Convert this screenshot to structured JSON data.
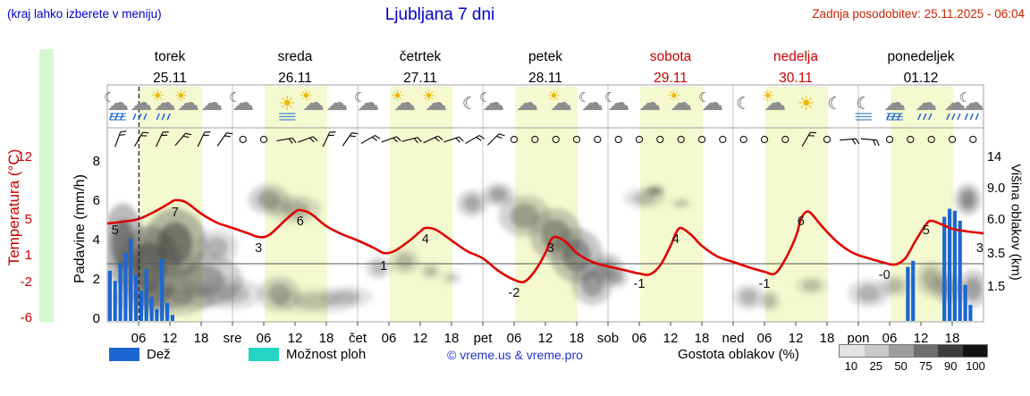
{
  "header": {
    "note": "(kraj lahko izberete v meniju)",
    "title": "Ljubljana 7 dni",
    "updated": "Zadnja posodobitev: 25.11.2025 - 06:04"
  },
  "axes": {
    "temp_label": "Temperatura (°C)",
    "temp_ticks": [
      "12",
      "5",
      "1",
      "-2",
      "-6"
    ],
    "precip_label": "Padavine (mm/h)",
    "precip_ticks": [
      "8",
      "6",
      "4",
      "2",
      "0"
    ],
    "cloud_label": "Višina oblakov (km)",
    "cloud_ticks": [
      "14",
      "9.0",
      "6.0",
      "3.5",
      "1.5"
    ]
  },
  "days": [
    {
      "name": "torek",
      "date": "25.11",
      "red": false
    },
    {
      "name": "sreda",
      "date": "26.11",
      "red": false
    },
    {
      "name": "četrtek",
      "date": "27.11",
      "red": false
    },
    {
      "name": "petek",
      "date": "28.11",
      "red": false
    },
    {
      "name": "sobota",
      "date": "29.11",
      "red": true
    },
    {
      "name": "nedelja",
      "date": "30.11",
      "red": true
    },
    {
      "name": "ponedeljek",
      "date": "01.12",
      "red": false
    }
  ],
  "xticks": [
    "06",
    "12",
    "18",
    "sre",
    "06",
    "12",
    "18",
    "čet",
    "06",
    "12",
    "18",
    "pet",
    "06",
    "12",
    "18",
    "sob",
    "06",
    "12",
    "18",
    "ned",
    "06",
    "12",
    "18",
    "pon",
    "06",
    "12",
    "18"
  ],
  "legend": {
    "rain": "Dež",
    "showers": "Možnost ploh",
    "credit": "© vreme.us & vreme.pro",
    "cloud_density": "Gostota oblakov (%)",
    "density_ticks": [
      "10",
      "25",
      "50",
      "75",
      "90",
      "100"
    ],
    "density_colors": [
      "#e4e4e4",
      "#c9c9c9",
      "#9d9d9d",
      "#6e6e6e",
      "#3d3d3d",
      "#121212"
    ],
    "rain_color": "#1c66d4",
    "showers_color": "#22d6c3"
  },
  "chart_data": {
    "type": "line",
    "title": "Ljubljana 7 dni",
    "x_unit": "hour",
    "x_range_hours": [
      0,
      168
    ],
    "now_hour": 6.07,
    "daylight_band_hours": [
      6.2,
      18.2
    ],
    "temperature_c": {
      "points": [
        [
          0,
          4.5
        ],
        [
          3,
          4.7
        ],
        [
          6,
          5
        ],
        [
          9,
          5.8
        ],
        [
          12,
          6.8
        ],
        [
          13,
          7.1
        ],
        [
          15,
          6.9
        ],
        [
          18,
          5.6
        ],
        [
          21,
          4.6
        ],
        [
          24,
          4
        ],
        [
          27,
          3.4
        ],
        [
          29,
          3
        ],
        [
          31,
          3.2
        ],
        [
          34,
          4.8
        ],
        [
          36,
          5.8
        ],
        [
          37,
          6
        ],
        [
          39,
          5.6
        ],
        [
          42,
          4.2
        ],
        [
          45,
          3.3
        ],
        [
          48,
          2.6
        ],
        [
          51,
          1.8
        ],
        [
          53,
          1.2
        ],
        [
          55,
          1.4
        ],
        [
          58,
          2.6
        ],
        [
          60,
          3.6
        ],
        [
          61,
          4
        ],
        [
          63,
          3.8
        ],
        [
          66,
          2.6
        ],
        [
          69,
          1.4
        ],
        [
          72,
          0.6
        ],
        [
          75,
          -0.8
        ],
        [
          78,
          -1.8
        ],
        [
          80,
          -2
        ],
        [
          82,
          -0.8
        ],
        [
          84,
          1.2
        ],
        [
          85,
          2.6
        ],
        [
          86,
          3
        ],
        [
          88,
          2.4
        ],
        [
          90,
          1.2
        ],
        [
          93,
          0.2
        ],
        [
          96,
          -0.3
        ],
        [
          99,
          -0.7
        ],
        [
          102,
          -1.1
        ],
        [
          104,
          -1.2
        ],
        [
          106,
          -0.2
        ],
        [
          108,
          2
        ],
        [
          109,
          3.4
        ],
        [
          110,
          4
        ],
        [
          112,
          3.2
        ],
        [
          114,
          2
        ],
        [
          117,
          0.8
        ],
        [
          120,
          0.2
        ],
        [
          123,
          -0.4
        ],
        [
          126,
          -0.9
        ],
        [
          128,
          -1.1
        ],
        [
          130,
          0.5
        ],
        [
          132,
          3
        ],
        [
          133,
          5
        ],
        [
          134,
          5.8
        ],
        [
          135,
          5.6
        ],
        [
          137,
          4.2
        ],
        [
          140,
          2.4
        ],
        [
          143,
          1.2
        ],
        [
          146,
          0.6
        ],
        [
          149,
          0.1
        ],
        [
          151,
          -0.1
        ],
        [
          153,
          0.6
        ],
        [
          155,
          2.6
        ],
        [
          157,
          4.4
        ],
        [
          158,
          4.8
        ],
        [
          160,
          4.4
        ],
        [
          162,
          3.9
        ],
        [
          165,
          3.6
        ],
        [
          168,
          3.4
        ]
      ],
      "labels": [
        [
          1.5,
          "5"
        ],
        [
          13,
          "7"
        ],
        [
          29,
          "3"
        ],
        [
          37,
          "6"
        ],
        [
          53,
          "1"
        ],
        [
          61,
          "4"
        ],
        [
          78,
          "-2"
        ],
        [
          85,
          "3"
        ],
        [
          102,
          "-1"
        ],
        [
          109,
          "4"
        ],
        [
          126,
          "-1"
        ],
        [
          133,
          "6"
        ],
        [
          149,
          "-0"
        ],
        [
          157,
          "5"
        ],
        [
          167.3,
          "3"
        ]
      ]
    },
    "precipitation_mm_h": [
      [
        0,
        2.5
      ],
      [
        1,
        2.0
      ],
      [
        2,
        2.9
      ],
      [
        3,
        3.4
      ],
      [
        4,
        4.1
      ],
      [
        5,
        2.3
      ],
      [
        6,
        1.5
      ],
      [
        7,
        2.6
      ],
      [
        8,
        1.2
      ],
      [
        9,
        0.6
      ],
      [
        10,
        3.1
      ],
      [
        11,
        0.9
      ],
      [
        12,
        0.3
      ],
      [
        153,
        2.7
      ],
      [
        154,
        3.0
      ],
      [
        160,
        5.2
      ],
      [
        161,
        5.6
      ],
      [
        162,
        5.5
      ],
      [
        163,
        5.0
      ],
      [
        164,
        1.8
      ],
      [
        165,
        0.8
      ]
    ],
    "wind_barbs": [
      [
        2,
        20
      ],
      [
        6,
        30
      ],
      [
        10,
        25
      ],
      [
        14,
        40
      ],
      [
        18,
        25
      ],
      [
        22,
        35
      ],
      [
        26,
        null
      ],
      [
        30,
        null
      ],
      [
        34,
        80
      ],
      [
        38,
        70
      ],
      [
        42,
        25
      ],
      [
        46,
        35
      ],
      [
        50,
        60
      ],
      [
        54,
        70
      ],
      [
        58,
        75
      ],
      [
        62,
        65
      ],
      [
        66,
        72
      ],
      [
        70,
        60
      ],
      [
        74,
        45
      ],
      [
        78,
        null
      ],
      [
        82,
        null
      ],
      [
        86,
        null
      ],
      [
        90,
        null
      ],
      [
        94,
        null
      ],
      [
        98,
        null
      ],
      [
        102,
        null
      ],
      [
        106,
        null
      ],
      [
        110,
        null
      ],
      [
        114,
        null
      ],
      [
        118,
        null
      ],
      [
        122,
        null
      ],
      [
        126,
        null
      ],
      [
        130,
        null
      ],
      [
        134,
        30
      ],
      [
        138,
        null
      ],
      [
        142,
        85
      ],
      [
        146,
        95
      ],
      [
        150,
        null
      ],
      [
        154,
        null
      ],
      [
        158,
        null
      ],
      [
        162,
        null
      ],
      [
        166,
        null
      ]
    ],
    "weather_icons": [
      [
        2,
        [
          "moon",
          "cloud",
          "rain",
          "fog"
        ]
      ],
      [
        6.5,
        [
          "cloud",
          "rain"
        ]
      ],
      [
        11,
        [
          "sun",
          "cloud",
          "rain"
        ]
      ],
      [
        15.5,
        [
          "sun",
          "cloud"
        ]
      ],
      [
        20,
        [
          "cloud"
        ]
      ],
      [
        26,
        [
          "moon",
          "cloud"
        ]
      ],
      [
        34.5,
        [
          "sun",
          "fog"
        ]
      ],
      [
        39.5,
        [
          "sun",
          "cloud"
        ]
      ],
      [
        44,
        [
          "cloud"
        ]
      ],
      [
        50,
        [
          "moon",
          "cloud"
        ]
      ],
      [
        57,
        [
          "sun",
          "cloud"
        ]
      ],
      [
        63,
        [
          "sun",
          "cloud"
        ]
      ],
      [
        69.5,
        [
          "moon"
        ]
      ],
      [
        74,
        [
          "moon",
          "cloud"
        ]
      ],
      [
        80.5,
        [
          "cloud"
        ]
      ],
      [
        87,
        [
          "sun",
          "cloud"
        ]
      ],
      [
        93,
        [
          "moon",
          "cloud"
        ]
      ],
      [
        98,
        [
          "moon",
          "cloud"
        ]
      ],
      [
        104,
        [
          "cloud"
        ]
      ],
      [
        110,
        [
          "sun",
          "cloud"
        ]
      ],
      [
        116,
        [
          "moon",
          "cloud"
        ]
      ],
      [
        122,
        [
          "moon"
        ]
      ],
      [
        128,
        [
          "sun",
          "cloud"
        ]
      ],
      [
        134,
        [
          "sun"
        ]
      ],
      [
        139.5,
        [
          "moon"
        ]
      ],
      [
        145,
        [
          "moon",
          "fog"
        ]
      ],
      [
        151,
        [
          "cloud",
          "fog",
          "rain"
        ]
      ],
      [
        157,
        [
          "cloud",
          "rain"
        ]
      ],
      [
        162.5,
        [
          "cloud",
          "rain"
        ]
      ],
      [
        166,
        [
          "moon",
          "cloud",
          "rain"
        ]
      ]
    ],
    "cloud_cover": [
      [
        3,
        4.5,
        4,
        3.0,
        0.8
      ],
      [
        8,
        3.0,
        6,
        2.5,
        0.85
      ],
      [
        13,
        4.5,
        6,
        2.5,
        0.8
      ],
      [
        18,
        2.0,
        8,
        1.5,
        0.55
      ],
      [
        11,
        1.0,
        10,
        0.9,
        0.5
      ],
      [
        21,
        4.0,
        4,
        1.2,
        0.4
      ],
      [
        24,
        1.2,
        6,
        0.8,
        0.35
      ],
      [
        31,
        8.0,
        4,
        1.6,
        0.5
      ],
      [
        36,
        7.0,
        5,
        1.3,
        0.4
      ],
      [
        33,
        1.2,
        4,
        0.9,
        0.45
      ],
      [
        40,
        0.8,
        8,
        0.6,
        0.3
      ],
      [
        46,
        1.0,
        5,
        0.5,
        0.3
      ],
      [
        52,
        2.6,
        2.5,
        0.7,
        0.35
      ],
      [
        57,
        3.0,
        3,
        0.8,
        0.35
      ],
      [
        62,
        2.4,
        2,
        0.5,
        0.3
      ],
      [
        66,
        2.0,
        2,
        0.4,
        0.25
      ],
      [
        70,
        7.5,
        3,
        1.3,
        0.45
      ],
      [
        75,
        8.5,
        3,
        1.3,
        0.5
      ],
      [
        80,
        6.5,
        5,
        1.8,
        0.5
      ],
      [
        86,
        5.0,
        5,
        2.0,
        0.6
      ],
      [
        90,
        3.5,
        5,
        1.8,
        0.65
      ],
      [
        93,
        1.8,
        4,
        1.2,
        0.55
      ],
      [
        96,
        2.5,
        3,
        1.0,
        0.5
      ],
      [
        98,
        2.0,
        2,
        0.6,
        0.35
      ],
      [
        103,
        8.0,
        4,
        1.0,
        0.35
      ],
      [
        105,
        8.8,
        2,
        0.6,
        0.6
      ],
      [
        110,
        7.5,
        2,
        0.5,
        0.3
      ],
      [
        123,
        1.0,
        3,
        0.6,
        0.4
      ],
      [
        127,
        0.8,
        2,
        0.5,
        0.35
      ],
      [
        135,
        1.6,
        3,
        0.5,
        0.3
      ],
      [
        146,
        1.2,
        4,
        0.7,
        0.4
      ],
      [
        151,
        1.6,
        3,
        0.6,
        0.35
      ],
      [
        158,
        2.0,
        3,
        1.0,
        0.4
      ],
      [
        161,
        1.5,
        3,
        0.8,
        0.45
      ],
      [
        165,
        8.0,
        2.5,
        1.6,
        0.65
      ],
      [
        166,
        1.5,
        3,
        1.0,
        0.5
      ]
    ]
  }
}
